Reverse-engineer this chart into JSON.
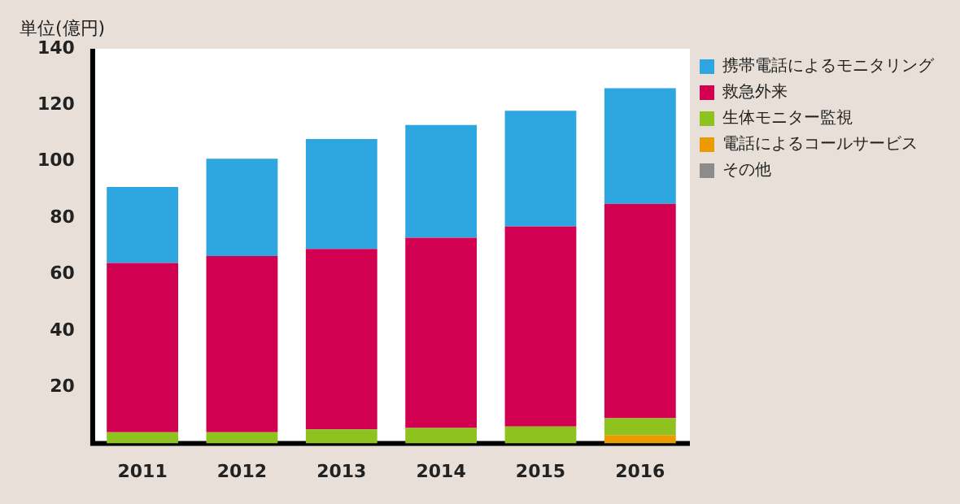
{
  "chart_data": {
    "type": "bar",
    "stacked": true,
    "ylabel": "単位(億円)",
    "categories": [
      "2011",
      "2012",
      "2013",
      "2014",
      "2015",
      "2016"
    ],
    "series": [
      {
        "name": "その他",
        "color": "#8c8c8c",
        "values": [
          0,
          0,
          0,
          0,
          0,
          0
        ]
      },
      {
        "name": "電話によるコールサービス",
        "color": "#eb9a00",
        "values": [
          0,
          0,
          0,
          0,
          0,
          3
        ]
      },
      {
        "name": "生体モニター監視",
        "color": "#8dc21f",
        "values": [
          4,
          4,
          5,
          5.5,
          6,
          6
        ]
      },
      {
        "name": "救急外来",
        "color": "#d20050",
        "values": [
          60,
          62.5,
          64,
          67.5,
          71,
          76
        ]
      },
      {
        "name": "携帯電話によるモニタリング",
        "color": "#2ea6df",
        "values": [
          27,
          34.5,
          39,
          40,
          41,
          41
        ]
      }
    ],
    "ylim": [
      0,
      140
    ],
    "yticks": [
      20,
      40,
      60,
      80,
      100,
      120,
      140
    ],
    "grid": false,
    "legend": "right"
  }
}
